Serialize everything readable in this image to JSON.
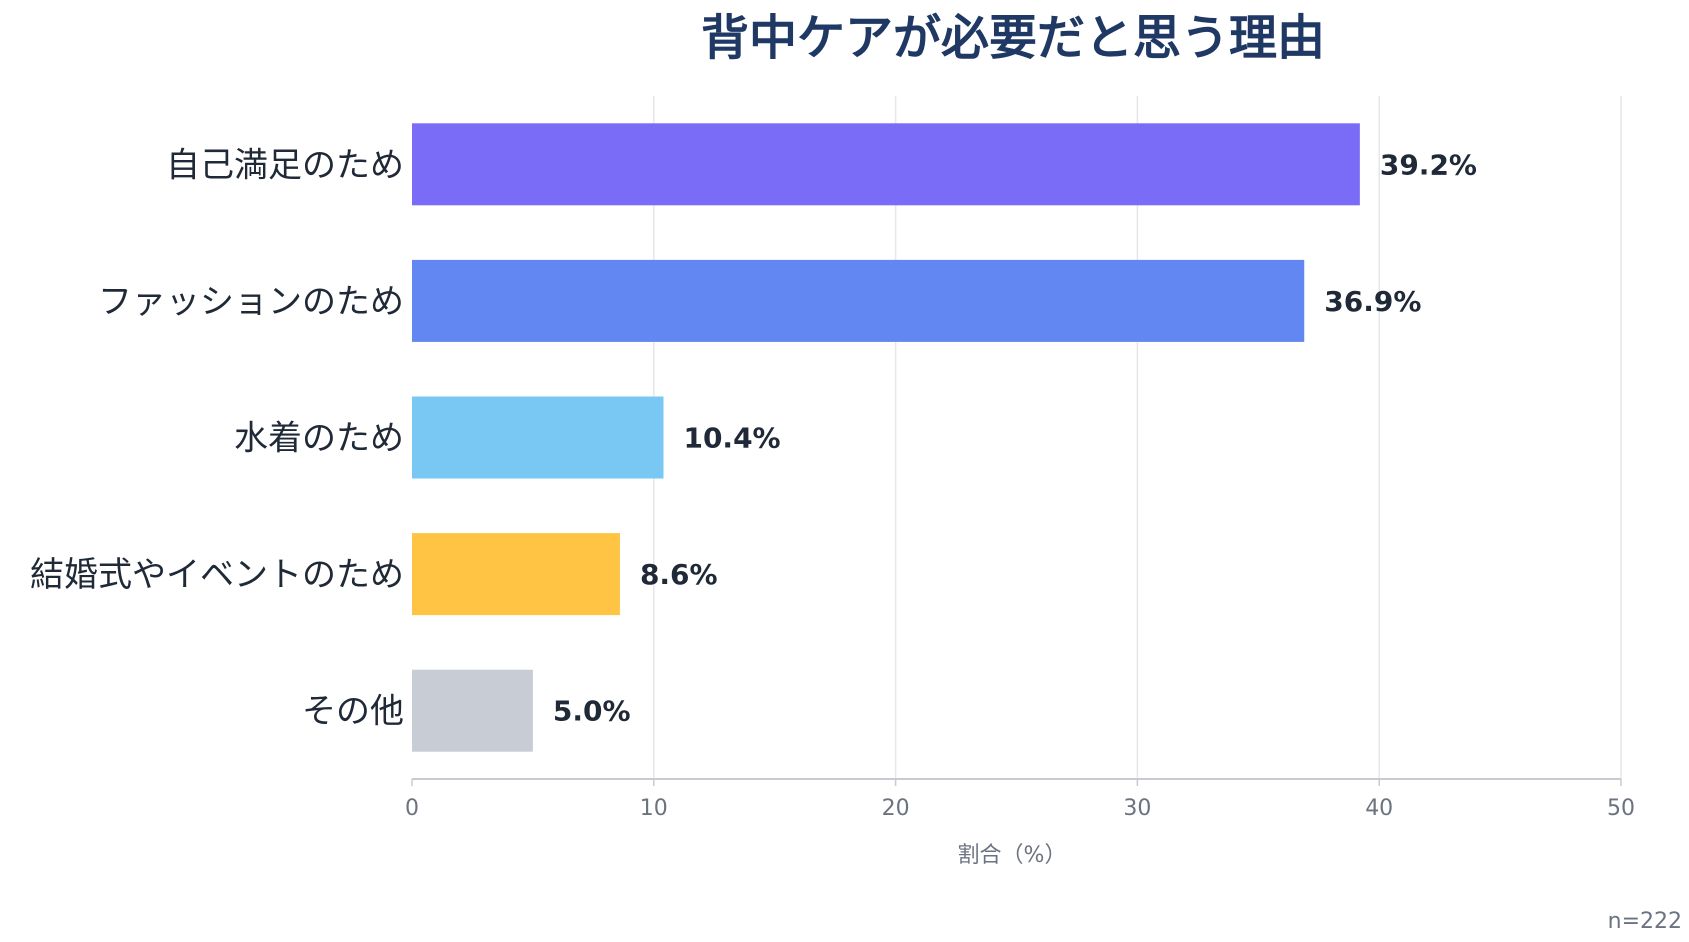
{
  "chart_data": {
    "type": "bar",
    "orientation": "horizontal",
    "title": "背中ケアが必要だと思う理由",
    "categories": [
      "自己満足のため",
      "ファッションのため",
      "水着のため",
      "結婚式やイベントのため",
      "その他"
    ],
    "values": [
      39.2,
      36.9,
      10.4,
      8.6,
      5.0
    ],
    "value_labels": [
      "39.2%",
      "36.9%",
      "10.4%",
      "8.6%",
      "5.0%"
    ],
    "colors": [
      "#7a6cf6",
      "#6287f3",
      "#79c8f3",
      "#ffc444",
      "#c8ccd5"
    ],
    "xlabel": "割合（%）",
    "ylabel": "",
    "xlim": [
      0,
      50
    ],
    "xticks": [
      0,
      10,
      20,
      30,
      40,
      50
    ],
    "xtick_labels": [
      "0",
      "10",
      "20",
      "30",
      "40",
      "50"
    ],
    "grid": true,
    "note": "n=222"
  }
}
